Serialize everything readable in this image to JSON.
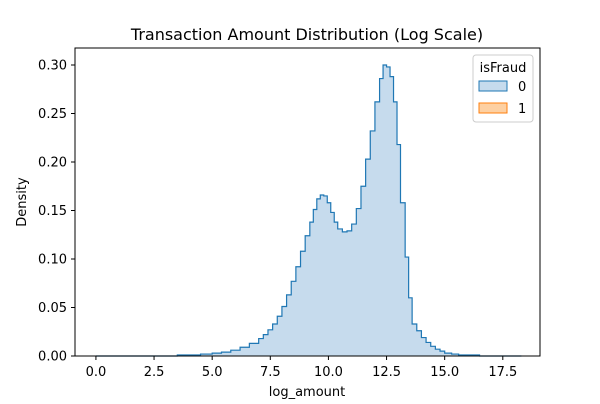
{
  "chart_data": {
    "type": "histogram-step",
    "title": "Transaction Amount Distribution (Log Scale)",
    "xlabel": "log_amount",
    "ylabel": "Density",
    "xlim": [
      -0.9,
      19.1
    ],
    "ylim": [
      0,
      0.3
    ],
    "x_ticks": [
      "0.0",
      "2.5",
      "5.0",
      "7.5",
      "10.0",
      "12.5",
      "15.0",
      "17.5"
    ],
    "y_ticks": [
      "0.00",
      "0.05",
      "0.10",
      "0.15",
      "0.20",
      "0.25",
      "0.30"
    ],
    "grid": false,
    "legend": {
      "title": "isFraud",
      "placement": "top-right"
    },
    "series": [
      {
        "name": "0",
        "color": "#1f77b4",
        "fill": "#c6dbed",
        "points": [
          [
            0.0,
            0.0
          ],
          [
            3.0,
            0.0
          ],
          [
            3.5,
            0.001
          ],
          [
            4.5,
            0.002
          ],
          [
            5.0,
            0.003
          ],
          [
            5.4,
            0.004
          ],
          [
            5.8,
            0.006
          ],
          [
            6.2,
            0.009
          ],
          [
            6.6,
            0.013
          ],
          [
            7.0,
            0.018
          ],
          [
            7.2,
            0.022
          ],
          [
            7.4,
            0.027
          ],
          [
            7.6,
            0.033
          ],
          [
            7.8,
            0.041
          ],
          [
            8.0,
            0.051
          ],
          [
            8.2,
            0.063
          ],
          [
            8.4,
            0.077
          ],
          [
            8.6,
            0.092
          ],
          [
            8.8,
            0.108
          ],
          [
            9.0,
            0.124
          ],
          [
            9.2,
            0.138
          ],
          [
            9.35,
            0.151
          ],
          [
            9.5,
            0.162
          ],
          [
            9.65,
            0.166
          ],
          [
            9.8,
            0.165
          ],
          [
            9.95,
            0.158
          ],
          [
            10.1,
            0.148
          ],
          [
            10.25,
            0.138
          ],
          [
            10.4,
            0.131
          ],
          [
            10.6,
            0.128
          ],
          [
            10.8,
            0.129
          ],
          [
            11.0,
            0.136
          ],
          [
            11.2,
            0.152
          ],
          [
            11.4,
            0.175
          ],
          [
            11.6,
            0.203
          ],
          [
            11.8,
            0.232
          ],
          [
            12.0,
            0.262
          ],
          [
            12.2,
            0.286
          ],
          [
            12.35,
            0.3
          ],
          [
            12.5,
            0.298
          ],
          [
            12.65,
            0.288
          ],
          [
            12.8,
            0.262
          ],
          [
            12.95,
            0.218
          ],
          [
            13.1,
            0.158
          ],
          [
            13.3,
            0.102
          ],
          [
            13.45,
            0.06
          ],
          [
            13.6,
            0.033
          ],
          [
            13.8,
            0.026
          ],
          [
            14.0,
            0.019
          ],
          [
            14.2,
            0.014
          ],
          [
            14.4,
            0.01
          ],
          [
            14.6,
            0.007
          ],
          [
            14.8,
            0.005
          ],
          [
            15.0,
            0.003
          ],
          [
            15.3,
            0.002
          ],
          [
            15.6,
            0.001
          ],
          [
            16.2,
            0.001
          ],
          [
            16.5,
            0.0
          ],
          [
            18.3,
            0.0
          ]
        ]
      },
      {
        "name": "1",
        "color": "#ff7f0e",
        "fill": "#fdd0a2",
        "points": []
      }
    ]
  }
}
